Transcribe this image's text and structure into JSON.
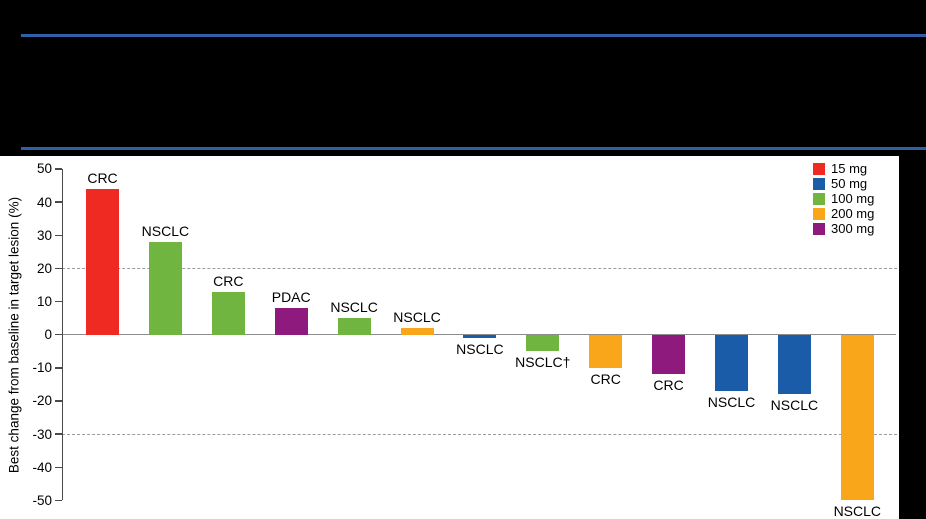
{
  "header": {
    "rule_color": "#2E5FA8",
    "note": "title band is blank/black in the image"
  },
  "chart_data": {
    "type": "bar",
    "title": "",
    "ylabel": "Best change from baseline in target lesion (%)",
    "ylim": [
      -50,
      50
    ],
    "yticks": [
      50,
      40,
      30,
      20,
      10,
      0,
      -10,
      -20,
      -30,
      -40,
      -50
    ],
    "dashed_gridlines": [
      20,
      -30
    ],
    "grid": "dashed horizontal lines at +20 and -30 only",
    "legend": {
      "position": "top-right",
      "entries": [
        {
          "label": "15 mg",
          "color": "#EE2A23"
        },
        {
          "label": "50 mg",
          "color": "#1B5CA8"
        },
        {
          "label": "100 mg",
          "color": "#6FB53F"
        },
        {
          "label": "200 mg",
          "color": "#FAA61A"
        },
        {
          "label": "300 mg",
          "color": "#8E1A7E"
        }
      ]
    },
    "bars": [
      {
        "label": "CRC",
        "dose": "15 mg",
        "value": 44
      },
      {
        "label": "NSCLC",
        "dose": "100 mg",
        "value": 28
      },
      {
        "label": "CRC",
        "dose": "100 mg",
        "value": 13
      },
      {
        "label": "PDAC",
        "dose": "300 mg",
        "value": 8
      },
      {
        "label": "NSCLC",
        "dose": "100 mg",
        "value": 5
      },
      {
        "label": "NSCLC",
        "dose": "200 mg",
        "value": 2
      },
      {
        "label": "NSCLC",
        "dose": "50 mg",
        "value": -1
      },
      {
        "label": "NSCLC†",
        "dose": "100 mg",
        "value": -5
      },
      {
        "label": "CRC",
        "dose": "200 mg",
        "value": -10
      },
      {
        "label": "CRC",
        "dose": "300 mg",
        "value": -12
      },
      {
        "label": "NSCLC",
        "dose": "50 mg",
        "value": -17
      },
      {
        "label": "NSCLC",
        "dose": "50 mg",
        "value": -18
      },
      {
        "label": "NSCLC",
        "dose": "200 mg",
        "value": -50
      }
    ]
  }
}
